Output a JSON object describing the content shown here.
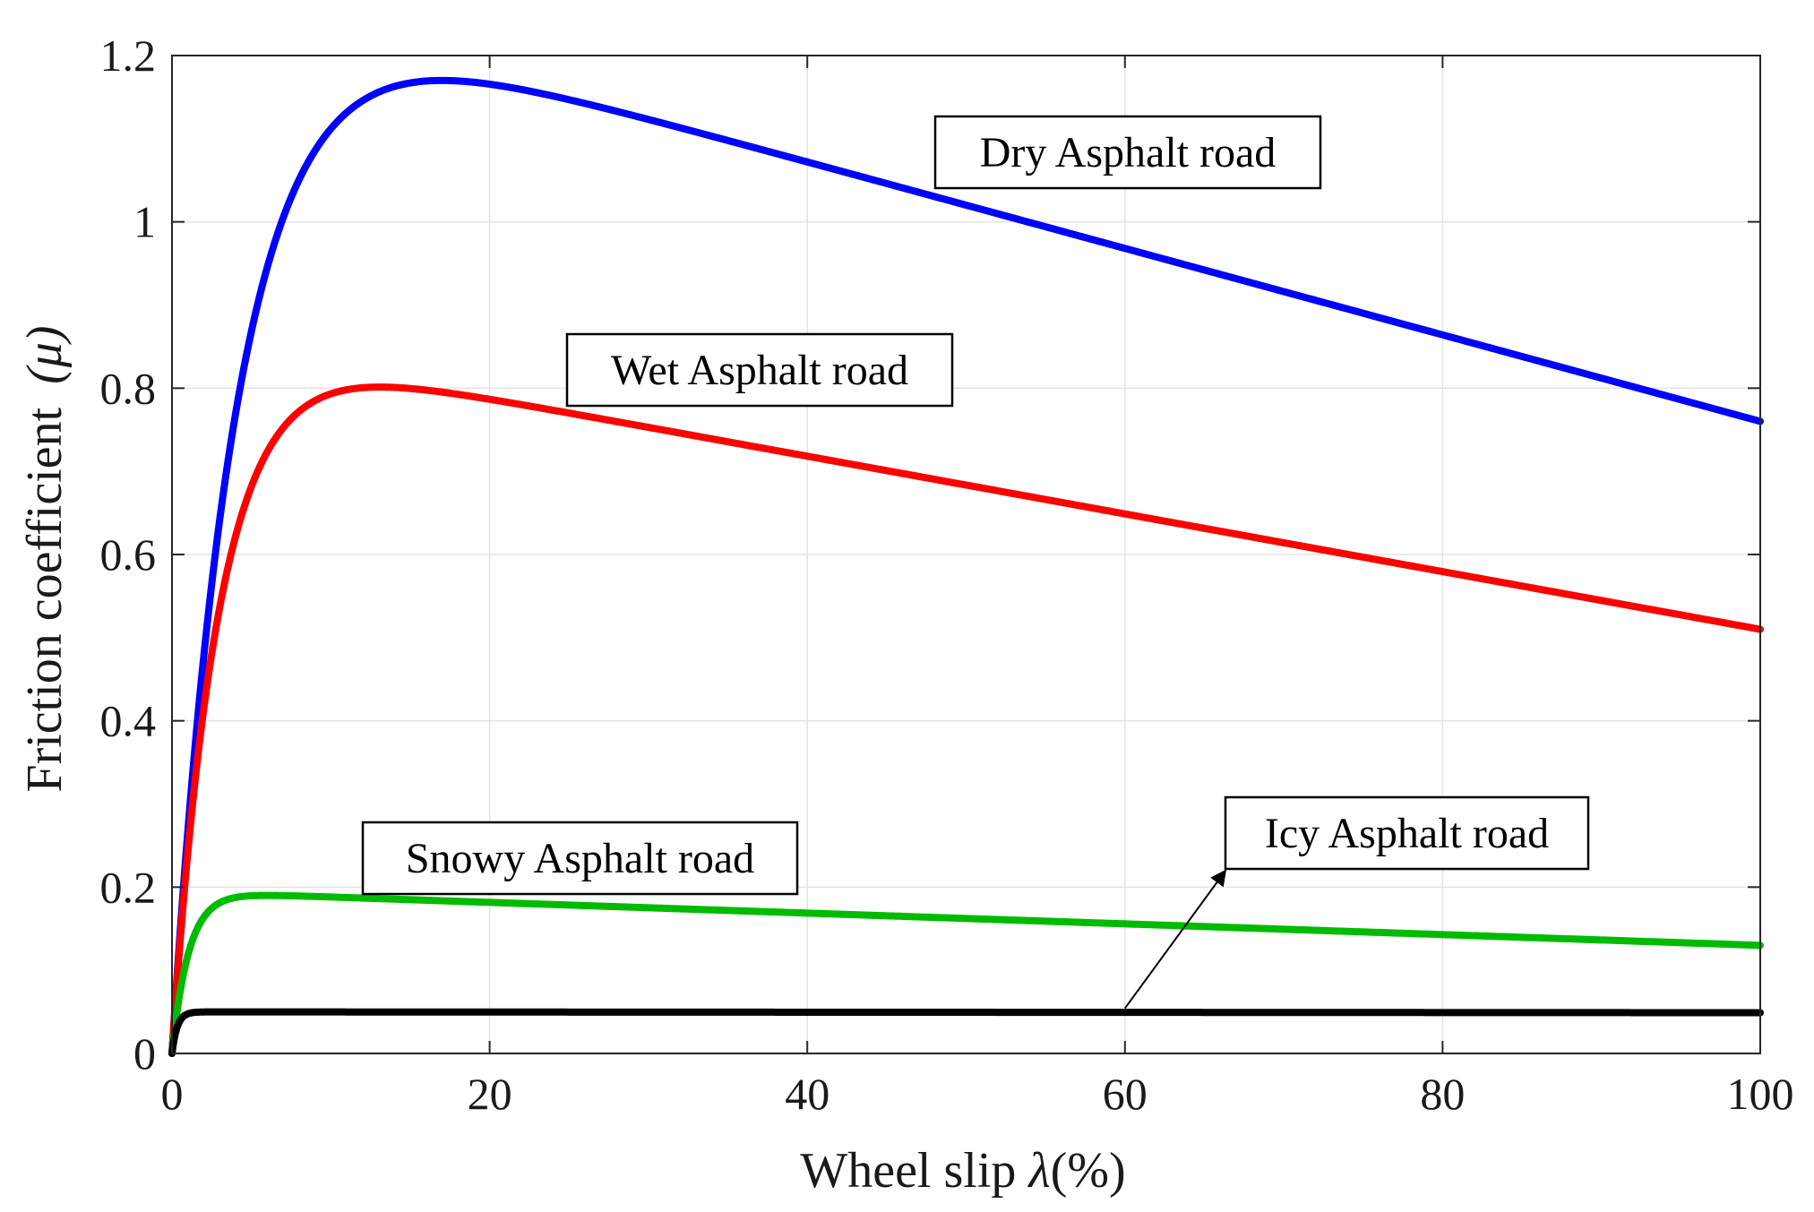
{
  "chart_data": {
    "type": "line",
    "title": "",
    "xlabel": "Wheel slip",
    "xlabel_symbol": "λ",
    "xlabel_unit": "(%)",
    "ylabel": "Friction coefficient",
    "ylabel_symbol": "(μ)",
    "xlim": [
      0,
      100
    ],
    "ylim": [
      0,
      1.2
    ],
    "xticks": [
      0,
      20,
      40,
      60,
      80,
      100
    ],
    "xtick_labels": [
      "0",
      "20",
      "40",
      "60",
      "80",
      "100"
    ],
    "yticks": [
      0,
      0.2,
      0.4,
      0.6,
      0.8,
      1.0,
      1.2
    ],
    "ytick_labels": [
      "0",
      "0.2",
      "0.4",
      "0.6",
      "0.8",
      "1",
      "1.2"
    ],
    "grid": true,
    "model": "burckhardt",
    "series": [
      {
        "name": "Dry Asphalt road",
        "color": "#0000ff",
        "peak_slip": 17,
        "peak_mu": 1.17,
        "end_mu": 0.76,
        "params": {
          "c1": 1.2801,
          "c2": 23.99,
          "c3": 0.52
        }
      },
      {
        "name": "Wet Asphalt road",
        "color": "#ff0000",
        "peak_slip": 13,
        "peak_mu": 0.8,
        "end_mu": 0.51,
        "params": {
          "c1": 0.857,
          "c2": 33.822,
          "c3": 0.347
        }
      },
      {
        "name": "Snowy Asphalt road",
        "color": "#00bb00",
        "peak_slip": 6,
        "peak_mu": 0.19,
        "end_mu": 0.13,
        "params": {
          "c1": 0.1946,
          "c2": 94.129,
          "c3": 0.0646
        }
      },
      {
        "name": "Icy Asphalt road",
        "color": "#000000",
        "peak_slip": 3,
        "peak_mu": 0.05,
        "end_mu": 0.05,
        "params": {
          "c1": 0.05,
          "c2": 306.39,
          "c3": 0.001
        }
      }
    ],
    "annotations": [
      {
        "text": "Dry Asphalt road",
        "series": 0,
        "box": true,
        "arrow": false
      },
      {
        "text": "Wet Asphalt road",
        "series": 1,
        "box": true,
        "arrow": false
      },
      {
        "text": "Snowy Asphalt road",
        "series": 2,
        "box": true,
        "arrow": false
      },
      {
        "text": "Icy Asphalt road",
        "series": 3,
        "box": true,
        "arrow": true,
        "arrow_from": [
          60,
          0.05
        ]
      }
    ]
  }
}
